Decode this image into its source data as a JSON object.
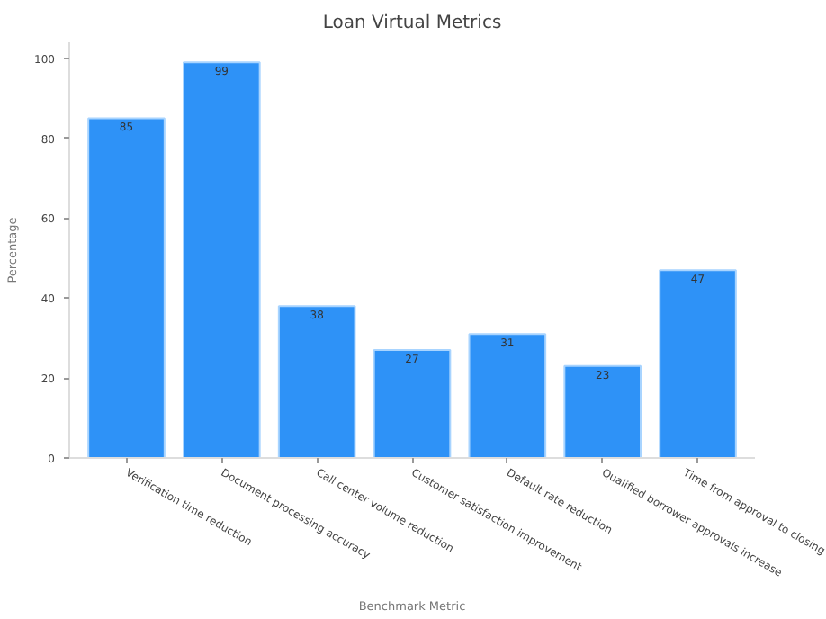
{
  "chart_data": {
    "type": "bar",
    "title": "Loan Virtual Metrics",
    "xlabel": "Benchmark Metric",
    "ylabel": "Percentage",
    "categories": [
      "Verification time reduction",
      "Document processing accuracy",
      "Call center volume reduction",
      "Customer satisfaction improvement",
      "Default rate reduction",
      "Qualified borrower approvals increase",
      "Time from approval to closing"
    ],
    "values": [
      85,
      99,
      38,
      27,
      31,
      23,
      47
    ],
    "color": "#2e92f7",
    "ylim": [
      0,
      104
    ],
    "yticks": [
      0,
      20,
      40,
      60,
      80,
      100
    ],
    "data_labels": true,
    "grid": false
  }
}
